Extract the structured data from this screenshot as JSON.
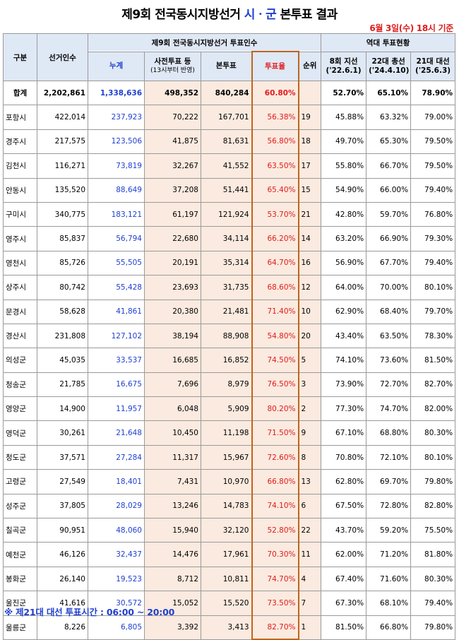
{
  "title": {
    "prefix": "제9회 전국동시지방선거 ",
    "highlight": "시ㆍ군",
    "suffix": " 본투표 결과"
  },
  "as_of": "6월 3일(수) 18시 기준",
  "headers": {
    "region": "구분",
    "electors": "선거인수",
    "turnout_group": "제9회 전국동시지방선거 투표인수",
    "history_group": "역대 투표현황",
    "cumulative": "누계",
    "early": "사전투표 등",
    "early_note": "(13시부터 반영)",
    "main_vote": "본투표",
    "rate": "투표율",
    "rank": "순위",
    "h1_line1": "8회 지선",
    "h1_line2": "('22.6.1)",
    "h2_line1": "22대 총선",
    "h2_line2": "('24.4.10)",
    "h3_line1": "21대 대선",
    "h3_line2": "('25.6.3)"
  },
  "total": {
    "name": "합계",
    "electors": "2,202,861",
    "cumulative": "1,338,636",
    "early": "498,352",
    "main_vote": "840,284",
    "rate": "60.80%",
    "rank": "",
    "h1": "52.70%",
    "h2": "65.10%",
    "h3": "78.90%"
  },
  "rows": [
    {
      "name": "포항시",
      "electors": "422,014",
      "cumulative": "237,923",
      "early": "70,222",
      "main_vote": "167,701",
      "rate": "56.38%",
      "rank": "19",
      "h1": "45.88%",
      "h2": "63.32%",
      "h3": "79.00%"
    },
    {
      "name": "경주시",
      "electors": "217,575",
      "cumulative": "123,506",
      "early": "41,875",
      "main_vote": "81,631",
      "rate": "56.80%",
      "rank": "18",
      "h1": "49.70%",
      "h2": "65.30%",
      "h3": "79.50%"
    },
    {
      "name": "김천시",
      "electors": "116,271",
      "cumulative": "73,819",
      "early": "32,267",
      "main_vote": "41,552",
      "rate": "63.50%",
      "rank": "17",
      "h1": "55.80%",
      "h2": "66.70%",
      "h3": "79.50%"
    },
    {
      "name": "안동시",
      "electors": "135,520",
      "cumulative": "88,649",
      "early": "37,208",
      "main_vote": "51,441",
      "rate": "65.40%",
      "rank": "15",
      "h1": "54.90%",
      "h2": "66.00%",
      "h3": "79.40%"
    },
    {
      "name": "구미시",
      "electors": "340,775",
      "cumulative": "183,121",
      "early": "61,197",
      "main_vote": "121,924",
      "rate": "53.70%",
      "rank": "21",
      "h1": "42.80%",
      "h2": "59.70%",
      "h3": "76.80%"
    },
    {
      "name": "영주시",
      "electors": "85,837",
      "cumulative": "56,794",
      "early": "22,680",
      "main_vote": "34,114",
      "rate": "66.20%",
      "rank": "14",
      "h1": "63.20%",
      "h2": "66.90%",
      "h3": "79.30%"
    },
    {
      "name": "영천시",
      "electors": "85,726",
      "cumulative": "55,505",
      "early": "20,191",
      "main_vote": "35,314",
      "rate": "64.70%",
      "rank": "16",
      "h1": "56.90%",
      "h2": "67.70%",
      "h3": "79.40%"
    },
    {
      "name": "상주시",
      "electors": "80,742",
      "cumulative": "55,428",
      "early": "23,693",
      "main_vote": "31,735",
      "rate": "68.60%",
      "rank": "12",
      "h1": "64.00%",
      "h2": "70.00%",
      "h3": "80.10%"
    },
    {
      "name": "문경시",
      "electors": "58,628",
      "cumulative": "41,861",
      "early": "20,380",
      "main_vote": "21,481",
      "rate": "71.40%",
      "rank": "10",
      "h1": "62.90%",
      "h2": "68.40%",
      "h3": "79.70%"
    },
    {
      "name": "경산시",
      "electors": "231,808",
      "cumulative": "127,102",
      "early": "38,194",
      "main_vote": "88,908",
      "rate": "54.80%",
      "rank": "20",
      "h1": "43.40%",
      "h2": "63.50%",
      "h3": "78.30%"
    },
    {
      "name": "의성군",
      "electors": "45,035",
      "cumulative": "33,537",
      "early": "16,685",
      "main_vote": "16,852",
      "rate": "74.50%",
      "rank": "5",
      "h1": "74.10%",
      "h2": "73.60%",
      "h3": "81.50%"
    },
    {
      "name": "청송군",
      "electors": "21,785",
      "cumulative": "16,675",
      "early": "7,696",
      "main_vote": "8,979",
      "rate": "76.50%",
      "rank": "3",
      "h1": "73.90%",
      "h2": "72.70%",
      "h3": "82.70%"
    },
    {
      "name": "영양군",
      "electors": "14,900",
      "cumulative": "11,957",
      "early": "6,048",
      "main_vote": "5,909",
      "rate": "80.20%",
      "rank": "2",
      "h1": "77.30%",
      "h2": "74.70%",
      "h3": "82.00%"
    },
    {
      "name": "영덕군",
      "electors": "30,261",
      "cumulative": "21,648",
      "early": "10,450",
      "main_vote": "11,198",
      "rate": "71.50%",
      "rank": "9",
      "h1": "67.10%",
      "h2": "68.80%",
      "h3": "80.30%"
    },
    {
      "name": "청도군",
      "electors": "37,571",
      "cumulative": "27,284",
      "early": "11,317",
      "main_vote": "15,967",
      "rate": "72.60%",
      "rank": "8",
      "h1": "70.80%",
      "h2": "72.10%",
      "h3": "80.10%"
    },
    {
      "name": "고령군",
      "electors": "27,549",
      "cumulative": "18,401",
      "early": "7,431",
      "main_vote": "10,970",
      "rate": "66.80%",
      "rank": "13",
      "h1": "62.80%",
      "h2": "69.70%",
      "h3": "79.80%"
    },
    {
      "name": "성주군",
      "electors": "37,805",
      "cumulative": "28,029",
      "early": "13,246",
      "main_vote": "14,783",
      "rate": "74.10%",
      "rank": "6",
      "h1": "67.50%",
      "h2": "72.80%",
      "h3": "82.80%"
    },
    {
      "name": "칠곡군",
      "electors": "90,951",
      "cumulative": "48,060",
      "early": "15,940",
      "main_vote": "32,120",
      "rate": "52.80%",
      "rank": "22",
      "h1": "43.70%",
      "h2": "59.20%",
      "h3": "75.50%"
    },
    {
      "name": "예천군",
      "electors": "46,126",
      "cumulative": "32,437",
      "early": "14,476",
      "main_vote": "17,961",
      "rate": "70.30%",
      "rank": "11",
      "h1": "62.00%",
      "h2": "71.20%",
      "h3": "81.80%"
    },
    {
      "name": "봉화군",
      "electors": "26,140",
      "cumulative": "19,523",
      "early": "8,712",
      "main_vote": "10,811",
      "rate": "74.70%",
      "rank": "4",
      "h1": "67.40%",
      "h2": "71.60%",
      "h3": "80.30%"
    },
    {
      "name": "울진군",
      "electors": "41,616",
      "cumulative": "30,572",
      "early": "15,052",
      "main_vote": "15,520",
      "rate": "73.50%",
      "rank": "7",
      "h1": "67.30%",
      "h2": "68.10%",
      "h3": "79.40%"
    },
    {
      "name": "울릉군",
      "electors": "8,226",
      "cumulative": "6,805",
      "early": "3,392",
      "main_vote": "3,413",
      "rate": "82.70%",
      "rank": "1",
      "h1": "81.50%",
      "h2": "66.80%",
      "h3": "79.80%"
    }
  ],
  "footer": "※ 제21대 대선 투표시간 : 06:00 ~ 20:00",
  "colors": {
    "accent_blue": "#1f3fd0",
    "accent_red": "#e01b1b",
    "header_bg": "#dfe8f5",
    "highlight_bg": "#fbeadf"
  }
}
